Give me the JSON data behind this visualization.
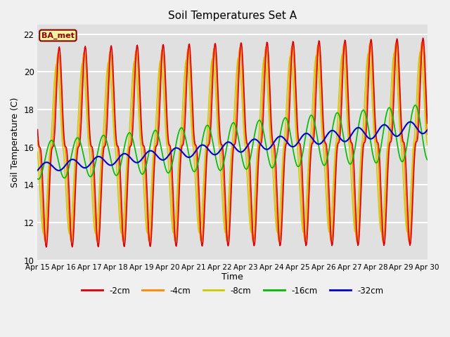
{
  "title": "Soil Temperatures Set A",
  "xlabel": "Time",
  "ylabel": "Soil Temperature (C)",
  "ylim": [
    10,
    22.5
  ],
  "xlim": [
    0,
    15
  ],
  "colors": {
    "m2cm": "#dd0000",
    "m4cm": "#ff8800",
    "m8cm": "#cccc00",
    "m16cm": "#00bb00",
    "m32cm": "#0000cc"
  },
  "legend_labels": [
    "-2cm",
    "-4cm",
    "-8cm",
    "-16cm",
    "-32cm"
  ],
  "ba_met_label": "BA_met",
  "xtick_labels": [
    "Apr 15",
    "Apr 16",
    "Apr 17",
    "Apr 18",
    "Apr 19",
    "Apr 20",
    "Apr 21",
    "Apr 22",
    "Apr 23",
    "Apr 24",
    "Apr 25",
    "Apr 26",
    "Apr 27",
    "Apr 28",
    "Apr 29",
    "Apr 30"
  ],
  "ytick_values": [
    10,
    12,
    14,
    16,
    18,
    20,
    22
  ],
  "line_width": 1.2,
  "fig_bg": "#f0f0f0",
  "plot_bg": "#e0e0e0"
}
